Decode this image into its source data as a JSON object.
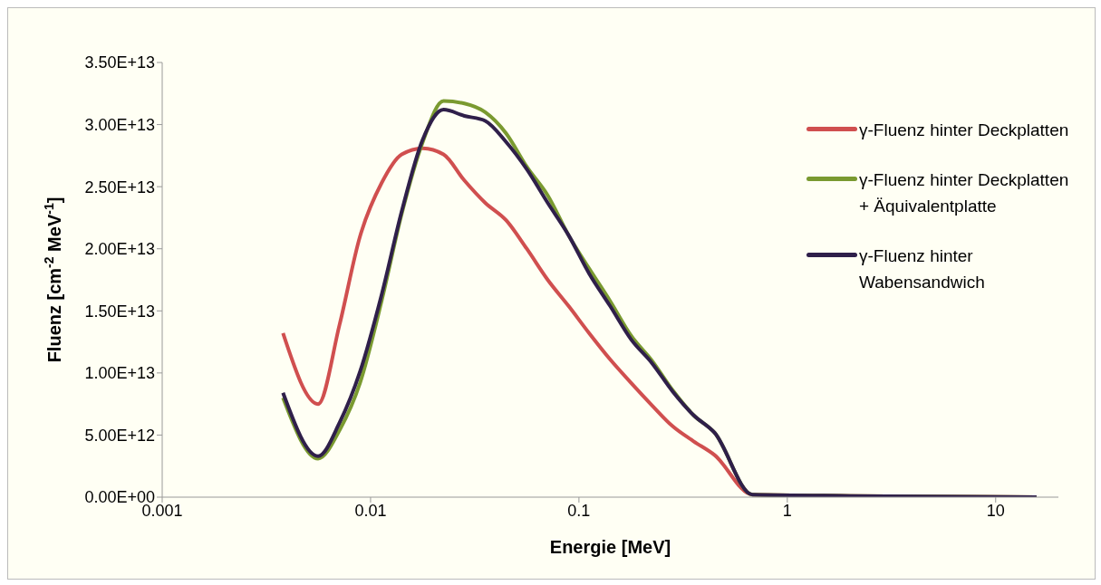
{
  "chart_data": {
    "type": "line",
    "xlabel": "Energie [MeV]",
    "ylabel": "Fluenz [cm$^{-2}$ MeV$^{-1}$]",
    "log": "x",
    "xlim": [
      0.001,
      20
    ],
    "xticks": [
      0.001,
      0.01,
      0.1,
      1,
      10
    ],
    "ylim": [
      0,
      35000000000000.0
    ],
    "yticks": [
      {
        "value": 0,
        "label": "0.00E+00"
      },
      {
        "value": 5000000000000.0,
        "label": "5.00E+12"
      },
      {
        "value": 10000000000000.0,
        "label": "1.00E+13"
      },
      {
        "value": 15000000000000.0,
        "label": "1.50E+13"
      },
      {
        "value": 20000000000000.0,
        "label": "2.00E+13"
      },
      {
        "value": 25000000000000.0,
        "label": "2.50E+13"
      },
      {
        "value": 30000000000000.0,
        "label": "3.00E+13"
      },
      {
        "value": 35000000000000.0,
        "label": "3.50E+13"
      }
    ],
    "grid": false,
    "legend": "right",
    "line_style": "solid",
    "x": [
      0.0038,
      0.0056,
      0.0071,
      0.0089,
      0.0113,
      0.0141,
      0.0178,
      0.0224,
      0.0282,
      0.0355,
      0.0447,
      0.0562,
      0.0708,
      0.0891,
      0.112,
      0.141,
      0.178,
      0.224,
      0.282,
      0.355,
      0.447,
      0.68,
      2.0,
      15.7
    ],
    "series": [
      {
        "name": "γ-Fluenz hinter Deckplatten",
        "color": "#d04f4f",
        "values": [
          13200000000000.0,
          7500000000000.0,
          13900000000000.0,
          21000000000000.0,
          25300000000000.0,
          27600000000000.0,
          28100000000000.0,
          27600000000000.0,
          25500000000000.0,
          23700000000000.0,
          22300000000000.0,
          20000000000000.0,
          17500000000000.0,
          15400000000000.0,
          13200000000000.0,
          11100000000000.0,
          9200000000000.0,
          7400000000000.0,
          5700000000000.0,
          4500000000000.0,
          3400000000000.0,
          200000000000.0,
          100000000000.0,
          0
        ]
      },
      {
        "name": "γ-Fluenz hinter Deckplatten + Äquivalentplatte",
        "color": "#7a9a30",
        "values": [
          8000000000000.0,
          3100000000000.0,
          5400000000000.0,
          9200000000000.0,
          15800000000000.0,
          22800000000000.0,
          28600000000000.0,
          31900000000000.0,
          31700000000000.0,
          31000000000000.0,
          29300000000000.0,
          26600000000000.0,
          24300000000000.0,
          21100000000000.0,
          18400000000000.0,
          15800000000000.0,
          13000000000000.0,
          11000000000000.0,
          8600000000000.0,
          6600000000000.0,
          5200000000000.0,
          200000000000.0,
          100000000000.0,
          0
        ]
      },
      {
        "name": "γ-Fluenz hinter Wabensandwich",
        "color": "#2f1f4a",
        "values": [
          8400000000000.0,
          3300000000000.0,
          6000000000000.0,
          10100000000000.0,
          16300000000000.0,
          23000000000000.0,
          28800000000000.0,
          31200000000000.0,
          30700000000000.0,
          30300000000000.0,
          28600000000000.0,
          26400000000000.0,
          23700000000000.0,
          21100000000000.0,
          18000000000000.0,
          15400000000000.0,
          12700000000000.0,
          10800000000000.0,
          8500000000000.0,
          6600000000000.0,
          5200000000000.0,
          200000000000.0,
          100000000000.0,
          0
        ]
      }
    ]
  }
}
